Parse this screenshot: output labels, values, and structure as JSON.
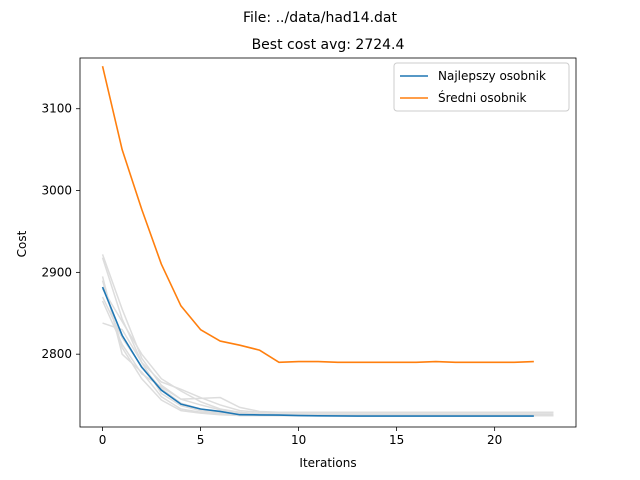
{
  "chart_data": {
    "type": "line",
    "suptitle": "File: ../data/had14.dat",
    "title": "Best cost avg: 2724.4",
    "xlabel": "Iterations",
    "ylabel": "Cost",
    "xlim": [
      -1.15,
      24.15
    ],
    "ylim": [
      2711,
      3162
    ],
    "xticks": [
      0,
      5,
      10,
      15,
      20
    ],
    "yticks": [
      2800,
      2900,
      3000,
      3100
    ],
    "grid": false,
    "legend_position": "top-right",
    "series": [
      {
        "name": "Najlepszy osobnik",
        "color": "#1f77b4",
        "x": [
          0,
          1,
          2,
          3,
          4,
          5,
          6,
          7,
          8,
          9,
          10,
          11,
          12,
          13,
          14,
          15,
          16,
          17,
          18,
          19,
          20,
          21,
          22
        ],
        "y": [
          2882,
          2823,
          2784,
          2756,
          2739,
          2733,
          2730,
          2726,
          2725.8,
          2725.6,
          2725,
          2724.7,
          2724.5,
          2724.4,
          2724.4,
          2724.4,
          2724.4,
          2724.4,
          2724.4,
          2724.4,
          2724.4,
          2724.4,
          2724.4
        ]
      },
      {
        "name": "Średni osobnik",
        "color": "#ff7f0e",
        "x": [
          0,
          1,
          2,
          3,
          4,
          5,
          6,
          7,
          8,
          9,
          10,
          11,
          12,
          13,
          14,
          15,
          16,
          17,
          18,
          19,
          20,
          21,
          22
        ],
        "y": [
          3152,
          3050,
          2977,
          2910,
          2859,
          2830,
          2816,
          2811,
          2805,
          2790,
          2791,
          2791,
          2790,
          2790,
          2790,
          2790,
          2790,
          2791,
          2790,
          2790,
          2790,
          2790,
          2791
        ]
      }
    ],
    "background_runs": {
      "color": "#dddddd",
      "runs": [
        {
          "x": [
            0,
            1,
            2,
            3,
            4,
            5,
            6,
            7,
            8,
            9,
            10,
            11,
            12,
            13,
            14,
            15,
            16,
            17,
            18,
            19,
            20,
            21,
            22,
            23
          ],
          "y": [
            2922,
            2855,
            2795,
            2762,
            2745,
            2738,
            2732,
            2728,
            2727,
            2726,
            2726,
            2725,
            2725,
            2725,
            2725,
            2725,
            2725,
            2725,
            2725,
            2725,
            2725,
            2725,
            2725,
            2725
          ]
        },
        {
          "x": [
            0,
            1,
            2,
            3,
            4,
            5,
            6,
            7,
            8,
            9,
            10,
            11,
            12,
            13,
            14,
            15,
            16,
            17,
            18,
            19,
            20,
            21,
            22,
            23
          ],
          "y": [
            2918,
            2843,
            2790,
            2752,
            2737,
            2731,
            2728,
            2726,
            2726,
            2725,
            2725,
            2725,
            2725,
            2725,
            2725,
            2725,
            2725,
            2725,
            2725,
            2725,
            2725,
            2725,
            2725,
            2725
          ]
        },
        {
          "x": [
            0,
            1,
            2,
            3,
            4,
            5,
            6,
            7,
            8,
            9,
            10,
            11,
            12,
            13,
            14,
            15,
            16,
            17,
            18,
            19,
            20,
            21,
            22,
            23
          ],
          "y": [
            2895,
            2800,
            2778,
            2748,
            2733,
            2729,
            2727,
            2725,
            2725,
            2725,
            2725,
            2725,
            2725,
            2725,
            2725,
            2725,
            2725,
            2725,
            2725,
            2725,
            2725,
            2725,
            2725,
            2725
          ]
        },
        {
          "x": [
            0,
            1,
            2,
            3,
            4,
            5,
            6,
            7,
            8,
            9,
            10,
            11,
            12,
            13,
            14,
            15,
            16,
            17,
            18,
            19,
            20,
            21,
            22,
            23
          ],
          "y": [
            2890,
            2808,
            2770,
            2744,
            2731,
            2728,
            2726,
            2725,
            2725,
            2725,
            2725,
            2725,
            2725,
            2725,
            2725,
            2725,
            2725,
            2725,
            2725,
            2725,
            2725,
            2725,
            2725,
            2725
          ]
        },
        {
          "x": [
            0,
            1,
            2,
            3,
            4,
            5,
            6,
            7,
            8,
            9,
            10,
            11,
            12,
            13,
            14,
            15,
            16,
            17,
            18,
            19,
            20,
            21,
            22,
            23
          ],
          "y": [
            2838,
            2830,
            2790,
            2766,
            2757,
            2747,
            2738,
            2731,
            2729,
            2728,
            2728,
            2728,
            2728,
            2728,
            2728,
            2728,
            2728,
            2728,
            2728,
            2728,
            2728,
            2728,
            2728,
            2728
          ]
        },
        {
          "x": [
            0,
            1,
            2,
            3,
            4,
            5,
            6,
            7,
            8,
            9,
            10,
            11,
            12,
            13,
            14,
            15,
            16,
            17,
            18,
            19,
            20,
            21,
            22,
            23
          ],
          "y": [
            2865,
            2812,
            2776,
            2760,
            2745,
            2746,
            2747,
            2735,
            2730,
            2729,
            2729,
            2729,
            2729,
            2729,
            2729,
            2729,
            2729,
            2729,
            2729,
            2729,
            2729,
            2729,
            2729,
            2729
          ]
        },
        {
          "x": [
            0,
            1,
            2,
            3,
            4,
            5,
            6,
            7,
            8,
            9,
            10,
            11,
            12,
            13,
            14,
            15,
            16,
            17,
            18,
            19,
            20,
            21,
            22,
            23
          ],
          "y": [
            2880,
            2840,
            2800,
            2770,
            2755,
            2742,
            2733,
            2729,
            2727,
            2726,
            2726,
            2726,
            2726,
            2726,
            2726,
            2726,
            2726,
            2726,
            2726,
            2726,
            2726,
            2726,
            2726,
            2726
          ]
        },
        {
          "x": [
            0,
            1,
            2,
            3,
            4,
            5,
            6,
            7,
            8,
            9,
            10,
            11,
            12,
            13,
            14,
            15,
            16,
            17,
            18,
            19,
            20,
            21,
            22,
            23
          ],
          "y": [
            2870,
            2820,
            2785,
            2758,
            2740,
            2733,
            2729,
            2727,
            2726,
            2725,
            2725,
            2725,
            2725,
            2725,
            2725,
            2725,
            2725,
            2725,
            2725,
            2725,
            2725,
            2725,
            2725,
            2725
          ]
        }
      ]
    }
  }
}
